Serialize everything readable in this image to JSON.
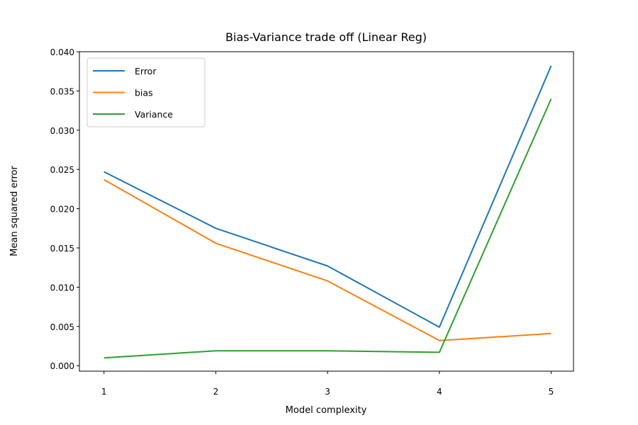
{
  "chart_data": {
    "type": "line",
    "title": "Bias-Variance trade off (Linear Reg)",
    "xlabel": "Model complexity",
    "ylabel": "Mean squared error",
    "x": [
      1,
      2,
      3,
      4,
      5
    ],
    "x_ticks": [
      "1",
      "2",
      "3",
      "4",
      "5"
    ],
    "xlim": [
      0.78,
      5.2
    ],
    "ylim": [
      -0.0007,
      0.04
    ],
    "y_ticks": [
      0.0,
      0.005,
      0.01,
      0.015,
      0.02,
      0.025,
      0.03,
      0.035,
      0.04
    ],
    "y_tick_labels": [
      "0.000",
      "0.005",
      "0.010",
      "0.015",
      "0.020",
      "0.025",
      "0.030",
      "0.035",
      "0.040"
    ],
    "grid": false,
    "legend_position": "top-left",
    "series": [
      {
        "name": "Error",
        "color": "#1f77b4",
        "values": [
          0.0247,
          0.0175,
          0.0127,
          0.0049,
          0.0382
        ]
      },
      {
        "name": "bias",
        "color": "#ff7f0e",
        "values": [
          0.0237,
          0.0156,
          0.0108,
          0.0032,
          0.0041
        ]
      },
      {
        "name": "Variance",
        "color": "#2ca02c",
        "values": [
          0.001,
          0.0019,
          0.0019,
          0.0017,
          0.034
        ]
      }
    ]
  }
}
